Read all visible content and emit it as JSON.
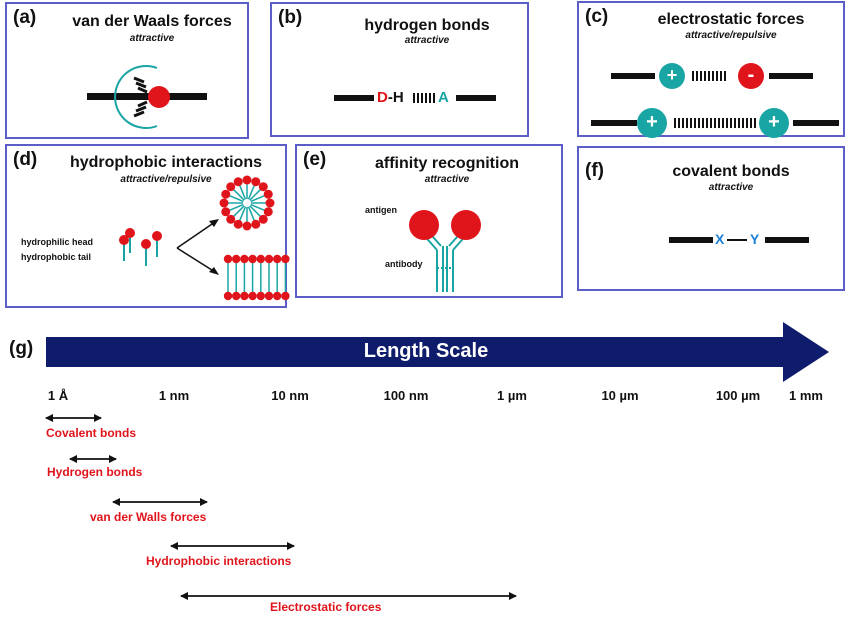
{
  "panels": {
    "a": {
      "label": "(a)",
      "title": "van der Waals forces",
      "subtitle": "attractive"
    },
    "b": {
      "label": "(b)",
      "title": "hydrogen bonds",
      "subtitle": "attractive",
      "donor": "D",
      "dash": "-",
      "hydrogen": "H",
      "acceptor": "A"
    },
    "c": {
      "label": "(c)",
      "title": "electrostatic forces",
      "subtitle": "attractive/repulsive",
      "plus": "+",
      "minus": "-"
    },
    "d": {
      "label": "(d)",
      "title": "hydrophobic interactions",
      "subtitle": "attractive/repulsive",
      "head_label": "hydrophilic head",
      "tail_label": "hydrophobic tail"
    },
    "e": {
      "label": "(e)",
      "title": "affinity recognition",
      "subtitle": "attractive",
      "antigen_label": "antigen",
      "antibody_label": "antibody"
    },
    "f": {
      "label": "(f)",
      "title": "covalent bonds",
      "subtitle": "attractive",
      "atom_x": "X",
      "atom_y": "Y"
    }
  },
  "scale": {
    "label": "(g)",
    "arrow_text": "Length Scale",
    "ticks": [
      "1 Å",
      "1 nm",
      "10 nm",
      "100 nm",
      "1 µm",
      "10 µm",
      "100 µm",
      "1 mm"
    ],
    "ranges": [
      {
        "name": "Covalent bonds",
        "from": "1 Å",
        "to": "1 nm"
      },
      {
        "name": "Hydrogen bonds",
        "from": "1 Å",
        "to": "1 nm"
      },
      {
        "name": "van der Walls forces",
        "from": "1 Å",
        "to": "10 nm"
      },
      {
        "name": "Hydrophobic interactions",
        "from": "1 nm",
        "to": "100 nm"
      },
      {
        "name": "Electrostatic forces",
        "from": "1 nm",
        "to": "1 µm"
      }
    ]
  },
  "colors": {
    "border": "#5b5ec7",
    "teal": "#1aa5a5",
    "red": "#e0141b",
    "navy": "#0f1b6b",
    "blue": "#1a7fd6"
  }
}
